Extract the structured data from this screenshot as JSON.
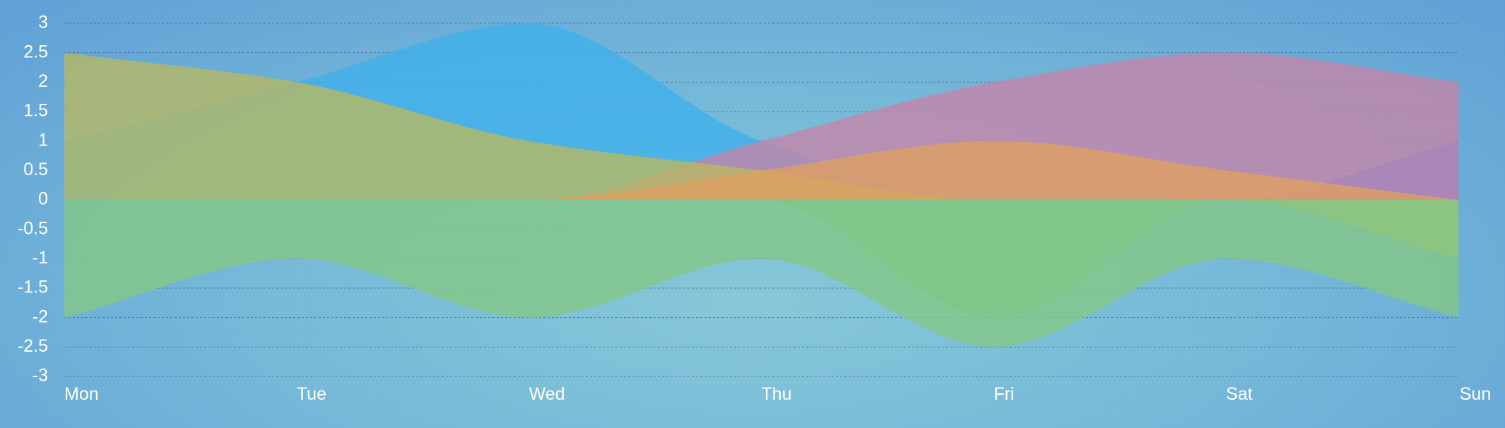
{
  "chart_data": {
    "type": "area",
    "categories": [
      "Mon",
      "Tue",
      "Wed",
      "Thu",
      "Fri",
      "Sat",
      "Sun"
    ],
    "ylim": [
      -3,
      3
    ],
    "yticks": [
      3,
      2.5,
      2,
      1.5,
      1,
      0.5,
      0,
      -0.5,
      -1,
      -1.5,
      -2,
      -2.5,
      -3
    ],
    "grid": true,
    "series": [
      {
        "values": [
          1,
          2,
          3,
          1,
          0,
          0,
          0
        ],
        "color": "#3fb0ec"
      },
      {
        "values": [
          0,
          0,
          0,
          1,
          2,
          2.5,
          2
        ],
        "color": "#c684a8"
      },
      {
        "values": [
          0,
          0,
          0,
          0,
          0,
          0,
          1
        ],
        "color": "#a684b8"
      },
      {
        "values": [
          2.5,
          2,
          1,
          0.5,
          0,
          0,
          -1
        ],
        "color": "#b8b860"
      },
      {
        "values": [
          0,
          0,
          0,
          0.5,
          1,
          0.5,
          0
        ],
        "color": "#e0a060"
      },
      {
        "values": [
          0,
          0,
          0,
          0,
          -2,
          0,
          0
        ],
        "color": "#6fc290"
      },
      {
        "values": [
          -2,
          -1,
          -2,
          -1,
          -2.5,
          -1,
          -2
        ],
        "color": "#84c884"
      }
    ]
  }
}
